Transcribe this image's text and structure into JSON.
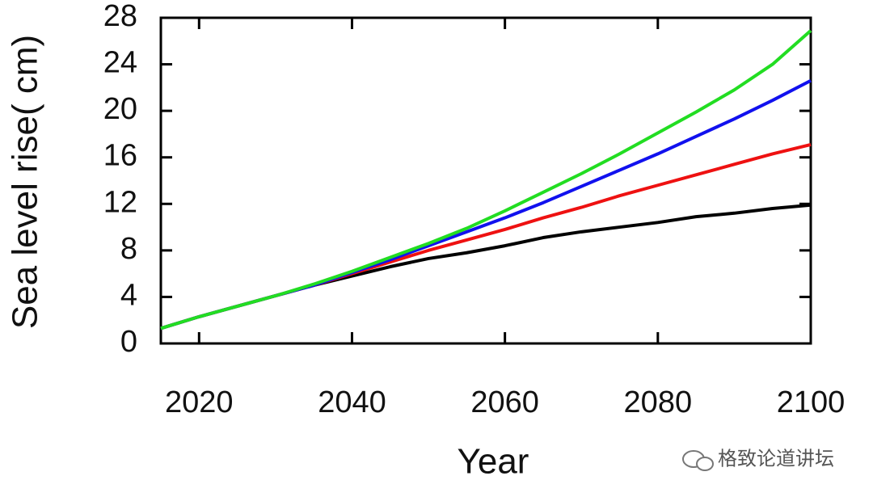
{
  "chart_data": {
    "type": "line",
    "x_label": "Year",
    "y_label": "Sea level rise( cm)",
    "x": [
      2015,
      2020,
      2025,
      2030,
      2035,
      2040,
      2045,
      2050,
      2055,
      2060,
      2065,
      2070,
      2075,
      2080,
      2085,
      2090,
      2095,
      2100
    ],
    "series": [
      {
        "color": "#000000",
        "values": [
          1.3,
          2.3,
          3.2,
          4.1,
          5.0,
          5.8,
          6.6,
          7.3,
          7.8,
          8.4,
          9.1,
          9.6,
          10.0,
          10.4,
          10.9,
          11.2,
          11.6,
          11.9
        ]
      },
      {
        "color": "#ee1111",
        "values": [
          1.3,
          2.3,
          3.2,
          4.1,
          5.0,
          6.0,
          7.0,
          8.0,
          8.9,
          9.8,
          10.8,
          11.7,
          12.7,
          13.6,
          14.5,
          15.4,
          16.3,
          17.1
        ]
      },
      {
        "color": "#1111ee",
        "values": [
          1.3,
          2.3,
          3.2,
          4.1,
          5.0,
          6.1,
          7.2,
          8.4,
          9.6,
          10.8,
          12.1,
          13.5,
          14.9,
          16.3,
          17.8,
          19.3,
          20.9,
          22.6
        ]
      },
      {
        "color": "#22dd22",
        "values": [
          1.3,
          2.3,
          3.2,
          4.1,
          5.1,
          6.2,
          7.4,
          8.6,
          9.9,
          11.4,
          13.0,
          14.6,
          16.3,
          18.1,
          19.9,
          21.8,
          24.0,
          26.9
        ]
      }
    ],
    "xlim": [
      2015,
      2100
    ],
    "xticks": [
      2020,
      2040,
      2060,
      2080,
      2100
    ],
    "ylim": [
      0,
      28
    ],
    "yticks": [
      0,
      4,
      8,
      12,
      16,
      20,
      24,
      28
    ],
    "watermark": "格致论道讲坛"
  }
}
